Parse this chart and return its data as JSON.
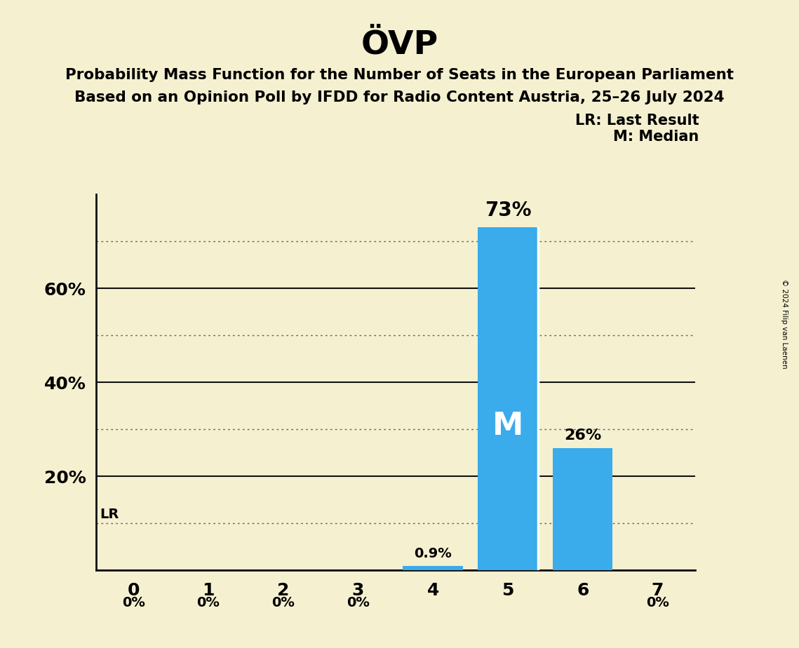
{
  "title": "ÖVP",
  "subtitle_line1": "Probability Mass Function for the Number of Seats in the European Parliament",
  "subtitle_line2": "Based on an Opinion Poll by IFDD for Radio Content Austria, 25–26 July 2024",
  "categories": [
    0,
    1,
    2,
    3,
    4,
    5,
    6,
    7
  ],
  "values": [
    0.0,
    0.0,
    0.0,
    0.0,
    0.9,
    73.0,
    26.0,
    0.0
  ],
  "bar_color": "#3aabeb",
  "background_color": "#f5f0d0",
  "title_fontsize": 34,
  "subtitle_fontsize": 15.5,
  "ytick_labels": [
    "20%",
    "40%",
    "60%"
  ],
  "ytick_values": [
    20,
    40,
    60
  ],
  "ylim": [
    0,
    80
  ],
  "xlim": [
    -0.5,
    7.5
  ],
  "bar_labels": [
    "0%",
    "0%",
    "0%",
    "0%",
    "0.9%",
    "73%",
    "26%",
    "0%"
  ],
  "median_bar_index": 5,
  "median_label": "M",
  "lr_line_y": 10,
  "lr_label": "LR",
  "legend_lr": "LR: Last Result",
  "legend_m": "M: Median",
  "copyright_text": "© 2024 Filip van Laenen",
  "grid_color": "#666666",
  "solid_line_color": "#111111",
  "solid_line_y": [
    0,
    20,
    40,
    60
  ],
  "dotted_line_y": [
    10,
    30,
    50,
    70
  ]
}
